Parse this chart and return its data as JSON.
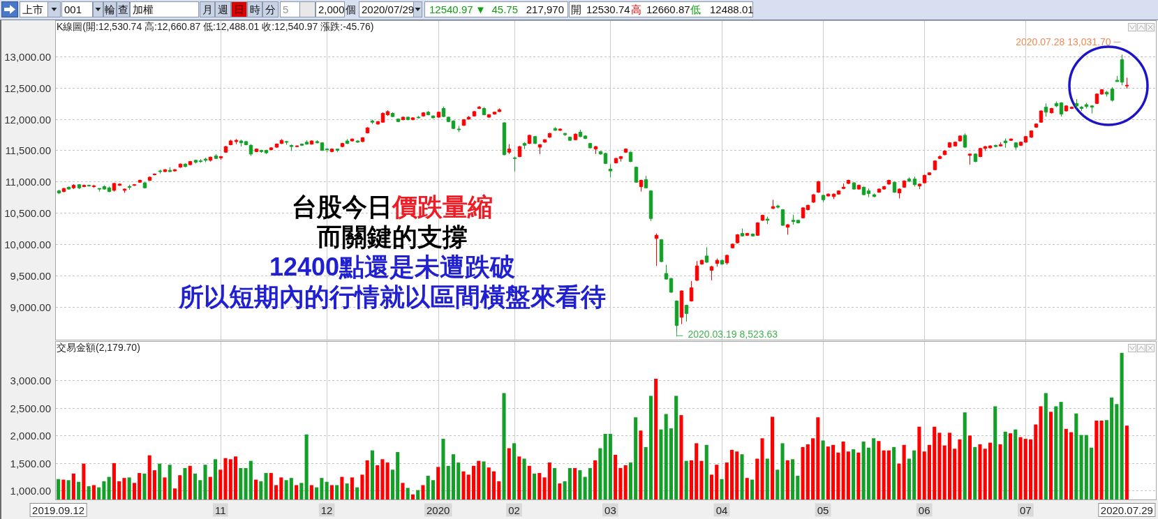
{
  "chart_data": [
    {
      "type": "other",
      "annotations": [
        "上市",
        "001",
        "輪",
        "查",
        "加權",
        "月",
        "週",
        "日",
        "時",
        "分",
        "5",
        "2,000",
        "個",
        "2020/07/29",
        "12540.97",
        "▼",
        "45.75",
        "217,970",
        "開",
        "12530.74",
        "高",
        "12660.87",
        "低",
        "12488.01"
      ]
    },
    {
      "type": "candlestick",
      "title": "K線圖(開:12,530.74 高:12,660.87 低:12,488.01 收:12,540.97 漲跌:-45.76)",
      "categories": [
        "2019.09.12",
        null,
        null,
        null,
        null,
        null,
        null,
        null,
        null,
        null,
        null,
        null,
        null,
        null,
        null,
        null,
        null,
        null,
        null,
        null,
        null,
        null,
        null,
        null,
        null,
        null,
        null,
        null,
        null,
        null,
        null,
        null,
        "11",
        null,
        null,
        null,
        null,
        null,
        null,
        null,
        null,
        null,
        null,
        null,
        null,
        null,
        null,
        null,
        null,
        null,
        null,
        null,
        null,
        "12",
        null,
        null,
        null,
        null,
        null,
        null,
        null,
        null,
        null,
        null,
        null,
        null,
        null,
        null,
        null,
        null,
        null,
        null,
        null,
        null,
        null,
        "2020",
        null,
        null,
        null,
        null,
        null,
        null,
        null,
        null,
        null,
        null,
        null,
        null,
        null,
        null,
        "02",
        null,
        null,
        null,
        null,
        null,
        null,
        null,
        null,
        null,
        null,
        null,
        null,
        null,
        null,
        null,
        null,
        null,
        null,
        "03",
        null,
        null,
        null,
        null,
        null,
        null,
        null,
        null,
        null,
        null,
        null,
        null,
        null,
        null,
        null,
        null,
        null,
        null,
        null,
        null,
        null,
        "04",
        null,
        null,
        null,
        null,
        null,
        null,
        null,
        null,
        null,
        null,
        null,
        null,
        null,
        null,
        null,
        null,
        null,
        null,
        null,
        "05",
        null,
        null,
        null,
        null,
        null,
        null,
        null,
        null,
        null,
        null,
        null,
        null,
        null,
        null,
        null,
        null,
        null,
        null,
        null,
        "06",
        null,
        null,
        null,
        null,
        null,
        null,
        null,
        null,
        null,
        null,
        null,
        null,
        null,
        null,
        null,
        null,
        null,
        null,
        null,
        "07",
        null,
        null,
        null,
        null,
        null,
        null,
        null,
        null,
        null,
        null,
        null,
        null,
        null,
        null,
        null,
        null,
        null,
        null,
        null,
        "2020.07.29"
      ],
      "ohlc": [
        [
          10850,
          10870,
          10800,
          10820
        ],
        [
          10840,
          10900,
          10830,
          10890
        ],
        [
          10910,
          10920,
          10870,
          10880
        ],
        [
          10900,
          10960,
          10880,
          10940
        ],
        [
          10950,
          10960,
          10880,
          10900
        ],
        [
          10920,
          10950,
          10910,
          10940
        ],
        [
          10940,
          10950,
          10920,
          10930
        ],
        [
          10920,
          10950,
          10900,
          10930
        ],
        [
          10890,
          10890,
          10840,
          10880
        ],
        [
          10920,
          10940,
          10870,
          10880
        ],
        [
          10900,
          10920,
          10830,
          10840
        ],
        [
          10860,
          10980,
          10840,
          10970
        ],
        [
          10940,
          10970,
          10930,
          10960
        ],
        [
          10860,
          10890,
          10820,
          10880
        ],
        [
          10920,
          10950,
          10870,
          10910
        ],
        [
          10940,
          10960,
          10930,
          10950
        ],
        [
          10990,
          11030,
          10980,
          11020
        ],
        [
          10980,
          10990,
          10890,
          10900
        ],
        [
          11020,
          11080,
          11010,
          11070
        ],
        [
          11110,
          11130,
          11100,
          11120
        ],
        [
          11170,
          11190,
          11130,
          11160
        ],
        [
          11160,
          11200,
          11150,
          11190
        ],
        [
          11180,
          11230,
          11150,
          11160
        ],
        [
          11170,
          11200,
          11160,
          11190
        ],
        [
          11230,
          11290,
          11220,
          11280
        ],
        [
          11280,
          11290,
          11230,
          11240
        ],
        [
          11270,
          11330,
          11260,
          11320
        ],
        [
          11340,
          11350,
          11290,
          11310
        ],
        [
          11330,
          11360,
          11300,
          11320
        ],
        [
          11360,
          11380,
          11310,
          11340
        ],
        [
          11340,
          11400,
          11320,
          11390
        ],
        [
          11410,
          11440,
          11360,
          11370
        ],
        [
          11380,
          11410,
          11350,
          11400
        ],
        [
          11470,
          11570,
          11460,
          11560
        ],
        [
          11590,
          11670,
          11580,
          11650
        ],
        [
          11640,
          11680,
          11600,
          11660
        ],
        [
          11650,
          11670,
          11560,
          11620
        ],
        [
          11640,
          11650,
          11580,
          11590
        ],
        [
          11580,
          11600,
          11410,
          11440
        ],
        [
          11480,
          11530,
          11470,
          11520
        ],
        [
          11500,
          11510,
          11460,
          11480
        ],
        [
          11500,
          11510,
          11440,
          11460
        ],
        [
          11510,
          11550,
          11500,
          11540
        ],
        [
          11550,
          11610,
          11540,
          11600
        ],
        [
          11610,
          11680,
          11600,
          11660
        ],
        [
          11640,
          11650,
          11590,
          11630
        ],
        [
          11580,
          11590,
          11490,
          11560
        ],
        [
          11560,
          11580,
          11550,
          11570
        ],
        [
          11600,
          11610,
          11570,
          11580
        ],
        [
          11630,
          11660,
          11590,
          11600
        ],
        [
          11600,
          11660,
          11590,
          11650
        ],
        [
          11640,
          11660,
          11610,
          11620
        ],
        [
          11620,
          11630,
          11490,
          11500
        ],
        [
          11520,
          11530,
          11470,
          11510
        ],
        [
          11480,
          11530,
          11470,
          11520
        ],
        [
          11520,
          11520,
          11470,
          11500
        ],
        [
          11560,
          11620,
          11550,
          11610
        ],
        [
          11650,
          11680,
          11600,
          11610
        ],
        [
          11650,
          11690,
          11640,
          11680
        ],
        [
          11650,
          11660,
          11620,
          11630
        ],
        [
          11640,
          11710,
          11630,
          11700
        ],
        [
          11780,
          11870,
          11770,
          11860
        ],
        [
          11970,
          11990,
          11920,
          11950
        ],
        [
          11920,
          11970,
          11910,
          11960
        ],
        [
          11950,
          12110,
          11940,
          12090
        ],
        [
          12070,
          12140,
          12050,
          12120
        ],
        [
          12090,
          12110,
          12030,
          12040
        ],
        [
          12000,
          12010,
          11950,
          11960
        ],
        [
          11990,
          12040,
          11980,
          12030
        ],
        [
          12030,
          12040,
          11980,
          11990
        ],
        [
          11990,
          12030,
          11980,
          12020
        ],
        [
          12030,
          12050,
          12010,
          12020
        ],
        [
          12050,
          12110,
          12040,
          12100
        ],
        [
          12110,
          12130,
          12060,
          12070
        ],
        [
          12050,
          12060,
          12010,
          12020
        ],
        [
          12030,
          12120,
          12020,
          12110
        ],
        [
          12170,
          12200,
          12030,
          12040
        ],
        [
          12030,
          12040,
          11950,
          11960
        ],
        [
          11970,
          11980,
          11840,
          11850
        ],
        [
          11840,
          11890,
          11790,
          11830
        ],
        [
          11900,
          12000,
          11890,
          11990
        ],
        [
          12000,
          12050,
          11990,
          12030
        ],
        [
          12050,
          12130,
          12040,
          12120
        ],
        [
          12170,
          12210,
          12160,
          12190
        ],
        [
          12170,
          12190,
          12060,
          12070
        ],
        [
          12030,
          12080,
          12020,
          12070
        ],
        [
          12080,
          12120,
          12070,
          12110
        ],
        [
          12120,
          12170,
          12110,
          12150
        ],
        [
          11940,
          11950,
          11420,
          11430
        ],
        [
          11470,
          11600,
          11440,
          11520
        ],
        [
          11380,
          11400,
          11160,
          11370
        ],
        [
          11400,
          11570,
          11390,
          11560
        ],
        [
          11610,
          11630,
          11520,
          11580
        ],
        [
          11610,
          11750,
          11600,
          11740
        ],
        [
          11720,
          11730,
          11600,
          11610
        ],
        [
          11550,
          11600,
          11440,
          11590
        ],
        [
          11630,
          11680,
          11620,
          11670
        ],
        [
          11710,
          11780,
          11700,
          11770
        ],
        [
          11850,
          11870,
          11810,
          11820
        ],
        [
          11820,
          11850,
          11810,
          11840
        ],
        [
          11770,
          11780,
          11730,
          11750
        ],
        [
          11710,
          11720,
          11650,
          11660
        ],
        [
          11670,
          11770,
          11660,
          11760
        ],
        [
          11790,
          11830,
          11710,
          11720
        ],
        [
          11730,
          11740,
          11680,
          11690
        ],
        [
          11610,
          11620,
          11530,
          11540
        ],
        [
          11520,
          11570,
          11440,
          11560
        ],
        [
          11480,
          11490,
          11430,
          11440
        ],
        [
          11450,
          11460,
          11280,
          11290
        ],
        [
          11200,
          11280,
          11070,
          11170
        ],
        [
          11300,
          11380,
          11290,
          11370
        ],
        [
          11370,
          11410,
          11320,
          11400
        ],
        [
          11470,
          11530,
          11460,
          11520
        ],
        [
          11470,
          11480,
          11310,
          11320
        ],
        [
          11230,
          11240,
          10980,
          10990
        ],
        [
          10920,
          11030,
          10840,
          11020
        ],
        [
          11030,
          11090,
          10890,
          10900
        ],
        [
          10850,
          10860,
          10370,
          10410
        ],
        [
          10090,
          10170,
          9650,
          10140
        ],
        [
          10070,
          10080,
          9710,
          9720
        ],
        [
          9530,
          9670,
          9430,
          9440
        ],
        [
          9450,
          9460,
          9220,
          9230
        ],
        [
          9090,
          9100,
          8523.63,
          8700
        ],
        [
          8830,
          9260,
          8720,
          9250
        ],
        [
          9020,
          9030,
          8760,
          8890
        ],
        [
          9090,
          9410,
          9080,
          9300
        ],
        [
          9420,
          9730,
          9410,
          9650
        ],
        [
          9680,
          9750,
          9670,
          9740
        ],
        [
          9810,
          9950,
          9700,
          9710
        ],
        [
          9580,
          9650,
          9420,
          9640
        ],
        [
          9690,
          9770,
          9640,
          9740
        ],
        [
          9740,
          9750,
          9670,
          9680
        ],
        [
          9700,
          9830,
          9670,
          9820
        ],
        [
          9940,
          10010,
          9930,
          10000
        ],
        [
          10020,
          10160,
          10010,
          10150
        ],
        [
          10170,
          10250,
          10120,
          10130
        ],
        [
          10140,
          10180,
          10130,
          10170
        ],
        [
          10160,
          10170,
          10120,
          10130
        ],
        [
          10140,
          10350,
          10130,
          10340
        ],
        [
          10380,
          10470,
          10370,
          10460
        ],
        [
          10400,
          10440,
          10320,
          10380
        ],
        [
          10570,
          10710,
          10560,
          10600
        ],
        [
          10610,
          10630,
          10570,
          10590
        ],
        [
          10550,
          10560,
          10290,
          10300
        ],
        [
          10270,
          10320,
          10150,
          10310
        ],
        [
          10380,
          10470,
          10310,
          10360
        ],
        [
          10380,
          10390,
          10330,
          10340
        ],
        [
          10420,
          10590,
          10410,
          10580
        ],
        [
          10550,
          10630,
          10540,
          10620
        ],
        [
          10670,
          10800,
          10660,
          10790
        ],
        [
          10830,
          11010,
          10820,
          11000
        ],
        [
          10780,
          10790,
          10670,
          10710
        ],
        [
          10770,
          10810,
          10760,
          10800
        ],
        [
          10760,
          10810,
          10720,
          10800
        ],
        [
          10800,
          10860,
          10790,
          10850
        ],
        [
          10890,
          10970,
          10880,
          10910
        ],
        [
          10970,
          11030,
          10960,
          11020
        ],
        [
          10980,
          10990,
          10870,
          10880
        ],
        [
          10880,
          10950,
          10870,
          10940
        ],
        [
          10910,
          10920,
          10780,
          10790
        ],
        [
          10850,
          10890,
          10750,
          10810
        ],
        [
          10790,
          10810,
          10750,
          10760
        ],
        [
          10830,
          10890,
          10820,
          10880
        ],
        [
          10880,
          10930,
          10870,
          10920
        ],
        [
          10960,
          11030,
          10950,
          11020
        ],
        [
          10990,
          11000,
          10820,
          10830
        ],
        [
          10820,
          10890,
          10730,
          10880
        ],
        [
          10910,
          11020,
          10900,
          11010
        ],
        [
          11040,
          11070,
          10990,
          11010
        ],
        [
          11040,
          11080,
          10920,
          10950
        ],
        [
          10930,
          10970,
          10880,
          10960
        ],
        [
          10980,
          11110,
          10970,
          11100
        ],
        [
          11110,
          11150,
          11100,
          11140
        ],
        [
          11190,
          11340,
          11180,
          11330
        ],
        [
          11370,
          11420,
          11360,
          11400
        ],
        [
          11430,
          11500,
          11420,
          11490
        ],
        [
          11550,
          11630,
          11540,
          11620
        ],
        [
          11570,
          11640,
          11560,
          11630
        ],
        [
          11650,
          11740,
          11640,
          11730
        ],
        [
          11740,
          11770,
          11540,
          11550
        ],
        [
          11420,
          11450,
          11270,
          11440
        ],
        [
          11440,
          11450,
          11310,
          11320
        ],
        [
          11400,
          11540,
          11390,
          11530
        ],
        [
          11530,
          11570,
          11490,
          11560
        ],
        [
          11540,
          11580,
          11530,
          11570
        ],
        [
          11580,
          11590,
          11550,
          11560
        ],
        [
          11570,
          11630,
          11560,
          11590
        ],
        [
          11650,
          11690,
          11540,
          11620
        ],
        [
          11660,
          11690,
          11650,
          11680
        ],
        [
          11620,
          11630,
          11510,
          11550
        ],
        [
          11580,
          11640,
          11570,
          11630
        ],
        [
          11630,
          11730,
          11620,
          11720
        ],
        [
          11710,
          11820,
          11700,
          11810
        ],
        [
          11870,
          11930,
          11860,
          11920
        ],
        [
          11950,
          12140,
          11940,
          12130
        ],
        [
          12190,
          12250,
          12040,
          12110
        ],
        [
          12100,
          12180,
          12090,
          12170
        ],
        [
          12250,
          12280,
          12190,
          12210
        ],
        [
          12260,
          12270,
          12040,
          12080
        ],
        [
          12130,
          12220,
          12120,
          12210
        ],
        [
          12170,
          12200,
          12160,
          12190
        ],
        [
          12250,
          12320,
          12170,
          12210
        ],
        [
          12190,
          12210,
          12130,
          12170
        ],
        [
          12230,
          12260,
          12170,
          12200
        ],
        [
          12210,
          12220,
          12090,
          12190
        ],
        [
          12250,
          12410,
          12240,
          12400
        ],
        [
          12400,
          12480,
          12390,
          12470
        ],
        [
          12430,
          12450,
          12360,
          12400
        ],
        [
          12480,
          12510,
          12280,
          12300
        ],
        [
          12620,
          12690,
          12600,
          12600
        ],
        [
          12950,
          13031.7,
          12540,
          12590
        ],
        [
          12530.74,
          12660.87,
          12488.01,
          12540.97
        ]
      ],
      "colors": [
        "#14a028",
        "#ff0000",
        "#14a028",
        "#ff0000",
        "#14a028",
        "#ff0000",
        "#14a028",
        "#ff0000",
        "#14a028",
        "#14a028",
        "#14a028",
        "#ff0000",
        "#ff0000",
        "#ff0000",
        "#14a028",
        "#ff0000",
        "#ff0000",
        "#14a028",
        "#ff0000",
        "#ff0000",
        "#14a028",
        "#ff0000",
        "#14a028",
        "#ff0000",
        "#ff0000",
        "#14a028",
        "#ff0000",
        "#14a028",
        "#14a028",
        "#14a028",
        "#ff0000",
        "#14a028",
        "#ff0000",
        "#ff0000",
        "#ff0000",
        "#ff0000",
        "#14a028",
        "#14a028",
        "#14a028",
        "#ff0000",
        "#14a028",
        "#14a028",
        "#ff0000",
        "#ff0000",
        "#ff0000",
        "#14a028",
        "#14a028",
        "#ff0000",
        "#14a028",
        "#14a028",
        "#ff0000",
        "#14a028",
        "#14a028",
        "#14a028",
        "#ff0000",
        "#14a028",
        "#ff0000",
        "#14a028",
        "#ff0000",
        "#14a028",
        "#ff0000",
        "#ff0000",
        "#14a028",
        "#ff0000",
        "#ff0000",
        "#ff0000",
        "#14a028",
        "#14a028",
        "#ff0000",
        "#14a028",
        "#ff0000",
        "#14a028",
        "#ff0000",
        "#14a028",
        "#14a028",
        "#ff0000",
        "#14a028",
        "#14a028",
        "#14a028",
        "#14a028",
        "#ff0000",
        "#ff0000",
        "#ff0000",
        "#ff0000",
        "#14a028",
        "#ff0000",
        "#ff0000",
        "#ff0000",
        "#14a028",
        "#ff0000",
        "#14a028",
        "#ff0000",
        "#14a028",
        "#ff0000",
        "#14a028",
        "#ff0000",
        "#ff0000",
        "#ff0000",
        "#14a028",
        "#ff0000",
        "#14a028",
        "#14a028",
        "#ff0000",
        "#14a028",
        "#14a028",
        "#14a028",
        "#ff0000",
        "#14a028",
        "#14a028",
        "#14a028",
        "#ff0000",
        "#ff0000",
        "#ff0000",
        "#14a028",
        "#14a028",
        "#ff0000",
        "#14a028",
        "#14a028",
        "#ff0000",
        "#14a028",
        "#14a028",
        "#14a028",
        "#14a028",
        "#ff0000",
        "#14a028",
        "#ff0000",
        "#ff0000",
        "#ff0000",
        "#14a028",
        "#ff0000",
        "#ff0000",
        "#14a028",
        "#ff0000",
        "#ff0000",
        "#ff0000",
        "#14a028",
        "#ff0000",
        "#14a028",
        "#ff0000",
        "#ff0000",
        "#14a028",
        "#ff0000",
        "#14a028",
        "#14a028",
        "#ff0000",
        "#14a028",
        "#14a028",
        "#ff0000",
        "#ff0000",
        "#ff0000",
        "#ff0000",
        "#14a028",
        "#ff0000",
        "#ff0000",
        "#ff0000",
        "#ff0000",
        "#ff0000",
        "#14a028",
        "#ff0000",
        "#14a028",
        "#14a028",
        "#14a028",
        "#ff0000",
        "#ff0000",
        "#ff0000",
        "#14a028",
        "#ff0000",
        "#ff0000",
        "#14a028",
        "#14a028",
        "#ff0000",
        "#ff0000",
        "#ff0000",
        "#ff0000",
        "#ff0000",
        "#ff0000",
        "#ff0000",
        "#ff0000",
        "#ff0000",
        "#14a028",
        "#ff0000",
        "#14a028",
        "#ff0000",
        "#ff0000",
        "#ff0000",
        "#14a028",
        "#ff0000",
        "#14a028",
        "#ff0000",
        "#14a028",
        "#ff0000",
        "#ff0000",
        "#ff0000",
        "#ff0000",
        "#ff0000",
        "#14a028",
        "#ff0000",
        "#14a028",
        "#14a028",
        "#ff0000",
        "#ff0000",
        "#14a028",
        "#14a028",
        "#14a028",
        "#14a028",
        "#ff0000",
        "#ff0000",
        "#14a028",
        "#14a028",
        "#14a028",
        "#14a028",
        "#ff0000"
      ],
      "ylim": [
        8470,
        13570
      ],
      "yticks": [
        {
          "value": 9000,
          "label": "9,000.00"
        },
        {
          "value": 9500,
          "label": "9,500.00"
        },
        {
          "value": 10000,
          "label": "10,000.00"
        },
        {
          "value": 10500,
          "label": "10,500.00"
        },
        {
          "value": 11000,
          "label": "11,000.00"
        },
        {
          "value": 11500,
          "label": "11,500.00"
        },
        {
          "value": 12000,
          "label": "12,000.00"
        },
        {
          "value": 12500,
          "label": "12,500.00"
        },
        {
          "value": 13000,
          "label": "13,000.00"
        }
      ],
      "grid": true,
      "tick_labels": "y",
      "annotations": [
        "2020.03.19 8,523.63",
        "2020.07.28 13,031.70",
        "台股今日",
        "價跌量縮",
        "而關鍵的支撐",
        "12400點還是未遭跌破",
        "所以短期內的行情就以區間橫盤來看待"
      ]
    },
    {
      "type": "bar",
      "title": "交易金額(2,179.70)",
      "categories": [
        "2019.09.12",
        null,
        null,
        null,
        null,
        null,
        null,
        null,
        null,
        null,
        null,
        null,
        null,
        null,
        null,
        null,
        null,
        null,
        null,
        null,
        null,
        null,
        null,
        null,
        null,
        null,
        null,
        null,
        null,
        null,
        null,
        null,
        "11",
        null,
        null,
        null,
        null,
        null,
        null,
        null,
        null,
        null,
        null,
        null,
        null,
        null,
        null,
        null,
        null,
        null,
        null,
        null,
        null,
        "12",
        null,
        null,
        null,
        null,
        null,
        null,
        null,
        null,
        null,
        null,
        null,
        null,
        null,
        null,
        null,
        null,
        null,
        null,
        null,
        null,
        null,
        "2020",
        null,
        null,
        null,
        null,
        null,
        null,
        null,
        null,
        null,
        null,
        null,
        null,
        null,
        null,
        "02",
        null,
        null,
        null,
        null,
        null,
        null,
        null,
        null,
        null,
        null,
        null,
        null,
        null,
        null,
        null,
        null,
        null,
        null,
        "03",
        null,
        null,
        null,
        null,
        null,
        null,
        null,
        null,
        null,
        null,
        null,
        null,
        null,
        null,
        null,
        null,
        null,
        null,
        null,
        null,
        null,
        "04",
        null,
        null,
        null,
        null,
        null,
        null,
        null,
        null,
        null,
        null,
        null,
        null,
        null,
        null,
        null,
        null,
        null,
        null,
        null,
        "05",
        null,
        null,
        null,
        null,
        null,
        null,
        null,
        null,
        null,
        null,
        null,
        null,
        null,
        null,
        null,
        null,
        null,
        null,
        null,
        "06",
        null,
        null,
        null,
        null,
        null,
        null,
        null,
        null,
        null,
        null,
        null,
        null,
        null,
        null,
        null,
        null,
        null,
        null,
        null,
        "07",
        null,
        null,
        null,
        null,
        null,
        null,
        null,
        null,
        null,
        null,
        null,
        null,
        null,
        null,
        null,
        null,
        null,
        null,
        null,
        "2020.07.29"
      ],
      "values": [
        1210,
        1200,
        1190,
        1310,
        1160,
        1490,
        1080,
        1100,
        1060,
        1170,
        1250,
        1500,
        1170,
        1230,
        1240,
        1140,
        1320,
        1310,
        1640,
        1370,
        1490,
        1240,
        1470,
        1040,
        1280,
        1410,
        1450,
        1310,
        1190,
        1470,
        1250,
        1570,
        1380,
        1590,
        1570,
        1620,
        1410,
        1410,
        1540,
        1200,
        1170,
        1320,
        1320,
        1100,
        1240,
        1190,
        1230,
        1100,
        1140,
        2020,
        1100,
        1060,
        1230,
        1160,
        1100,
        1100,
        1250,
        1130,
        1240,
        1060,
        1290,
        1550,
        1730,
        1460,
        1570,
        1510,
        1380,
        1700,
        1140,
        1050,
        930,
        1010,
        1100,
        1270,
        1190,
        1430,
        1940,
        1450,
        1660,
        1510,
        1350,
        1290,
        1450,
        1540,
        1530,
        1420,
        1350,
        1170,
        2770,
        1770,
        1860,
        1620,
        1580,
        1450,
        1310,
        1320,
        1240,
        1510,
        1410,
        1130,
        1170,
        1410,
        1410,
        1370,
        1250,
        1410,
        1550,
        1770,
        2030,
        2030,
        1650,
        1410,
        1460,
        1510,
        2330,
        2090,
        1790,
        2720,
        3030,
        2110,
        2390,
        2130,
        2720,
        2370,
        1540,
        1550,
        1860,
        1540,
        1830,
        1290,
        1470,
        1210,
        1510,
        1740,
        1710,
        1660,
        1230,
        1200,
        1580,
        1950,
        1580,
        2340,
        1380,
        1860,
        1550,
        1570,
        1270,
        1790,
        1840,
        1950,
        2330,
        1910,
        1800,
        1830,
        1690,
        1890,
        1710,
        1750,
        1690,
        1890,
        1780,
        1950,
        1900,
        1730,
        1730,
        1790,
        1490,
        1830,
        1580,
        1730,
        2160,
        1710,
        1830,
        2160,
        2050,
        1820,
        2050,
        1760,
        1930,
        2420,
        2000,
        1790,
        1840,
        1760,
        1870,
        2530,
        1840,
        2070,
        2040,
        2110,
        1970,
        1940,
        1930,
        2200,
        2530,
        2770,
        2430,
        2530,
        2610,
        2120,
        2060,
        2400,
        2010,
        2010,
        1780,
        2270,
        2270,
        2280,
        2690,
        2570,
        3500,
        2179.7
      ],
      "colors": [
        "#14a028",
        "#ff0000",
        "#14a028",
        "#ff0000",
        "#14a028",
        "#ff0000",
        "#14a028",
        "#ff0000",
        "#14a028",
        "#14a028",
        "#14a028",
        "#ff0000",
        "#ff0000",
        "#ff0000",
        "#14a028",
        "#ff0000",
        "#ff0000",
        "#14a028",
        "#ff0000",
        "#ff0000",
        "#14a028",
        "#ff0000",
        "#14a028",
        "#ff0000",
        "#ff0000",
        "#14a028",
        "#ff0000",
        "#14a028",
        "#14a028",
        "#14a028",
        "#ff0000",
        "#14a028",
        "#ff0000",
        "#ff0000",
        "#ff0000",
        "#ff0000",
        "#14a028",
        "#14a028",
        "#14a028",
        "#ff0000",
        "#14a028",
        "#14a028",
        "#ff0000",
        "#ff0000",
        "#ff0000",
        "#14a028",
        "#14a028",
        "#ff0000",
        "#14a028",
        "#14a028",
        "#ff0000",
        "#14a028",
        "#14a028",
        "#14a028",
        "#ff0000",
        "#14a028",
        "#ff0000",
        "#14a028",
        "#ff0000",
        "#14a028",
        "#ff0000",
        "#ff0000",
        "#14a028",
        "#ff0000",
        "#ff0000",
        "#ff0000",
        "#14a028",
        "#14a028",
        "#ff0000",
        "#14a028",
        "#ff0000",
        "#14a028",
        "#ff0000",
        "#14a028",
        "#14a028",
        "#ff0000",
        "#14a028",
        "#14a028",
        "#14a028",
        "#14a028",
        "#ff0000",
        "#ff0000",
        "#ff0000",
        "#ff0000",
        "#14a028",
        "#ff0000",
        "#ff0000",
        "#ff0000",
        "#14a028",
        "#ff0000",
        "#14a028",
        "#ff0000",
        "#14a028",
        "#ff0000",
        "#14a028",
        "#ff0000",
        "#ff0000",
        "#ff0000",
        "#14a028",
        "#ff0000",
        "#14a028",
        "#14a028",
        "#ff0000",
        "#14a028",
        "#14a028",
        "#14a028",
        "#ff0000",
        "#14a028",
        "#14a028",
        "#14a028",
        "#ff0000",
        "#ff0000",
        "#ff0000",
        "#14a028",
        "#14a028",
        "#ff0000",
        "#14a028",
        "#14a028",
        "#ff0000",
        "#14a028",
        "#14a028",
        "#14a028",
        "#14a028",
        "#ff0000",
        "#14a028",
        "#ff0000",
        "#ff0000",
        "#ff0000",
        "#14a028",
        "#ff0000",
        "#ff0000",
        "#14a028",
        "#ff0000",
        "#ff0000",
        "#ff0000",
        "#14a028",
        "#ff0000",
        "#14a028",
        "#ff0000",
        "#ff0000",
        "#14a028",
        "#ff0000",
        "#14a028",
        "#14a028",
        "#ff0000",
        "#14a028",
        "#14a028",
        "#ff0000",
        "#ff0000",
        "#ff0000",
        "#ff0000",
        "#14a028",
        "#ff0000",
        "#ff0000",
        "#ff0000",
        "#ff0000",
        "#ff0000",
        "#14a028",
        "#ff0000",
        "#14a028",
        "#14a028",
        "#14a028",
        "#ff0000",
        "#ff0000",
        "#ff0000",
        "#14a028",
        "#ff0000",
        "#ff0000",
        "#14a028",
        "#14a028",
        "#ff0000",
        "#ff0000",
        "#ff0000",
        "#ff0000",
        "#ff0000",
        "#ff0000",
        "#ff0000",
        "#ff0000",
        "#ff0000",
        "#14a028",
        "#ff0000",
        "#14a028",
        "#ff0000",
        "#ff0000",
        "#ff0000",
        "#14a028",
        "#ff0000",
        "#14a028",
        "#ff0000",
        "#14a028",
        "#ff0000",
        "#ff0000",
        "#ff0000",
        "#ff0000",
        "#ff0000",
        "#14a028",
        "#ff0000",
        "#14a028",
        "#14a028",
        "#ff0000",
        "#ff0000",
        "#14a028",
        "#14a028",
        "#14a028",
        "#14a028",
        "#ff0000",
        "#ff0000",
        "#14a028",
        "#14a028",
        "#14a028",
        "#14a028",
        "#ff0000"
      ],
      "ylim": [
        840,
        3700
      ],
      "yticks": [
        {
          "value": 1000,
          "label": "1,000.00"
        },
        {
          "value": 1500,
          "label": "1,500.00"
        },
        {
          "value": 2000,
          "label": "2,000.00"
        },
        {
          "value": 2500,
          "label": "2,500.00"
        },
        {
          "value": 3000,
          "label": "3,000.00"
        }
      ],
      "grid": true
    }
  ]
}
